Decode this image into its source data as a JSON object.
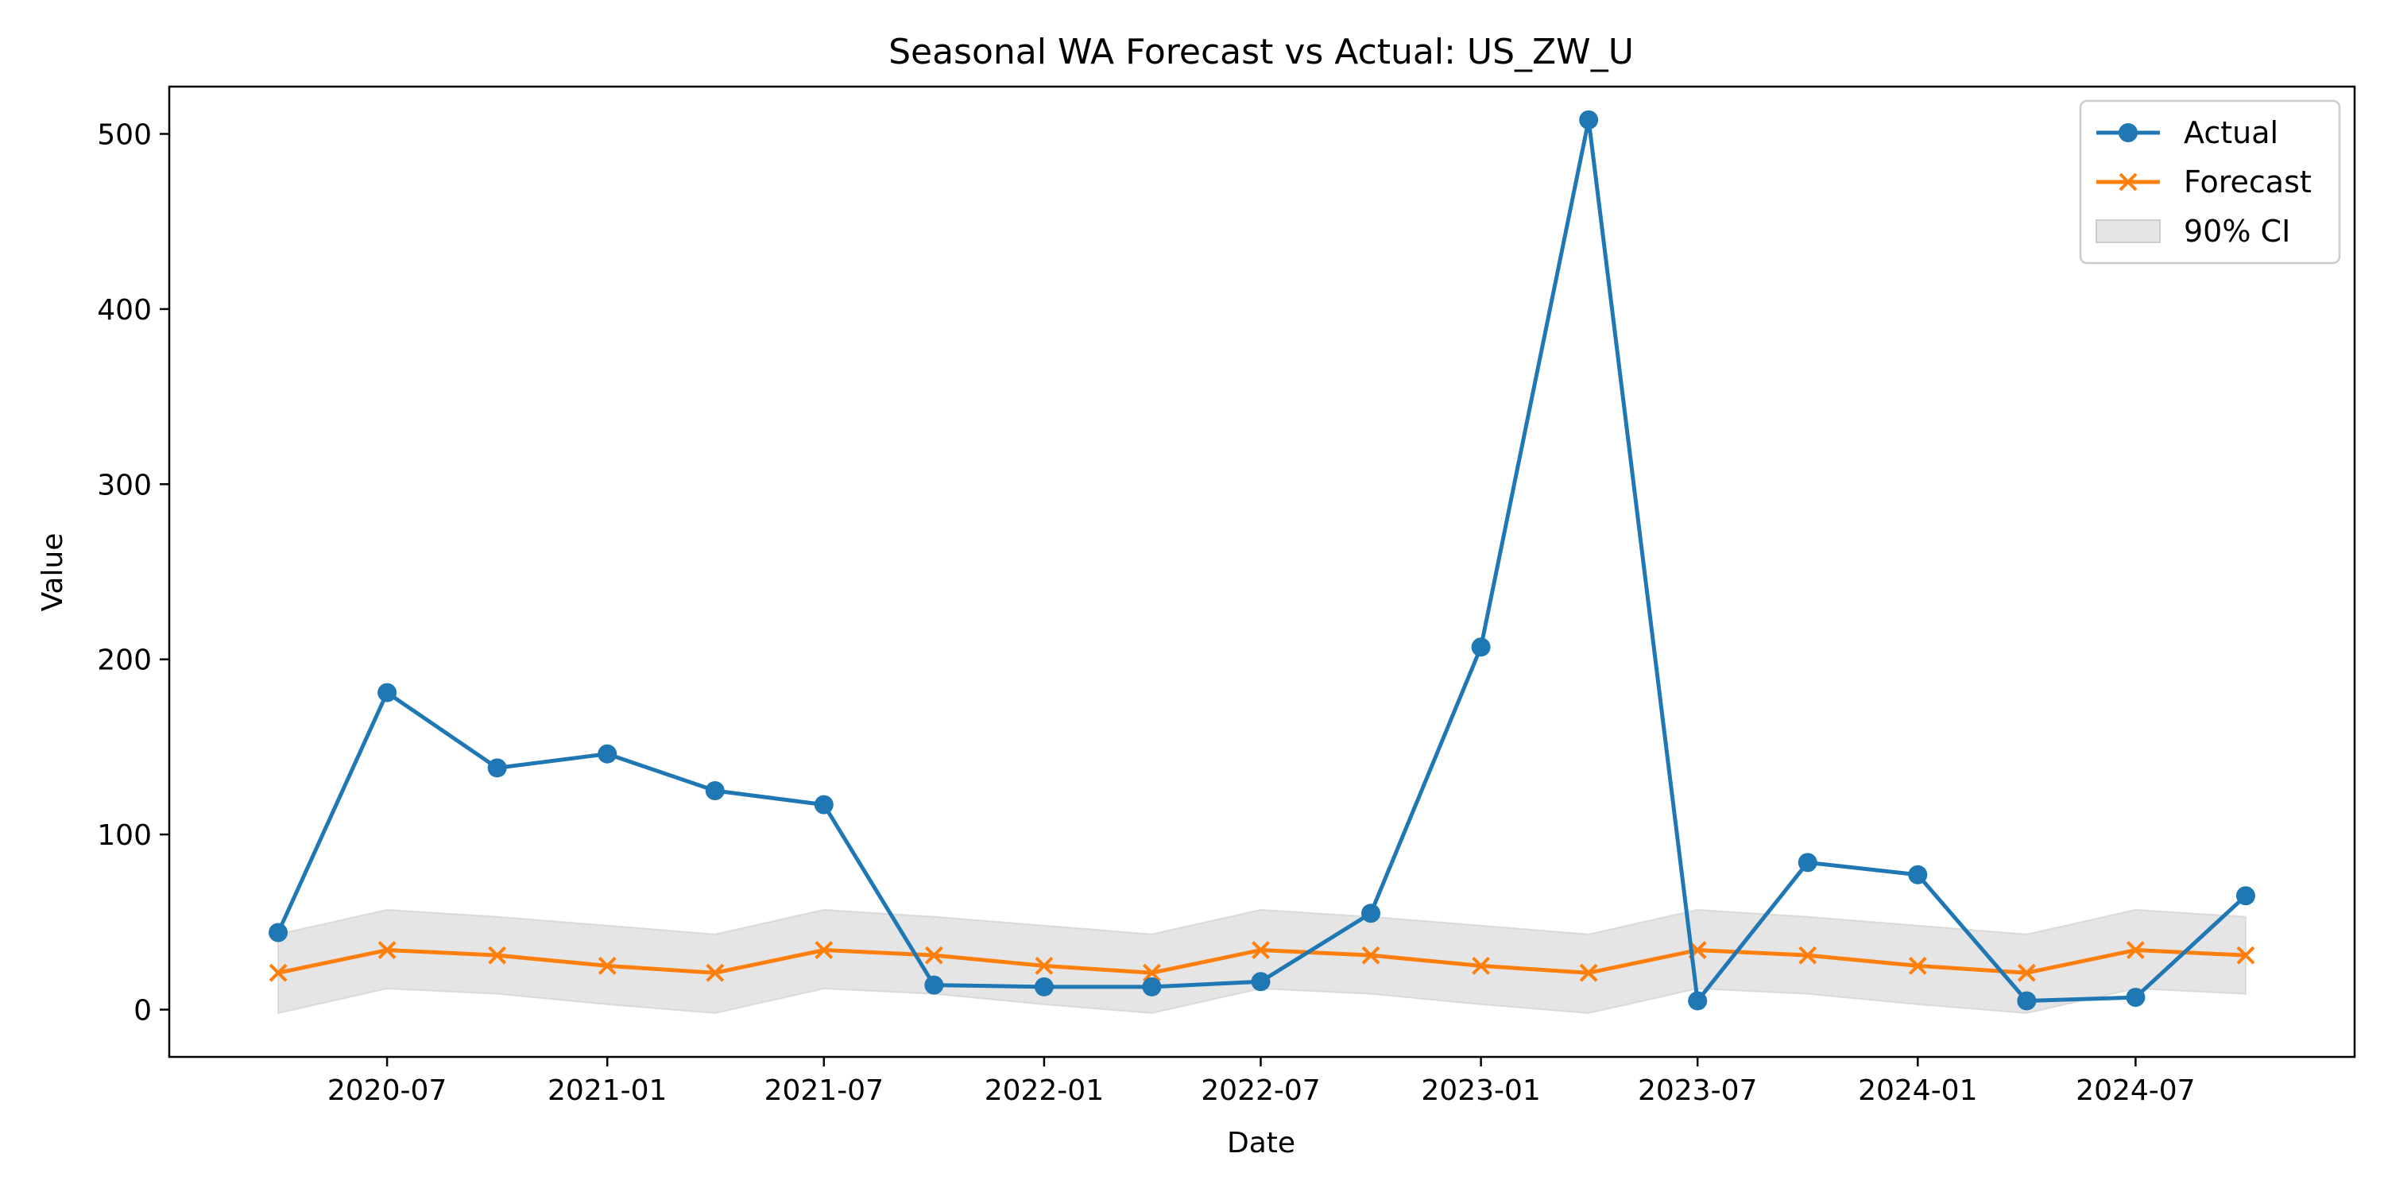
{
  "chart_data": {
    "type": "line",
    "title": "Seasonal WA Forecast vs Actual: US_ZW_U",
    "xlabel": "Date",
    "ylabel": "Value",
    "x_ticks": [
      "2020-07",
      "2021-01",
      "2021-07",
      "2022-01",
      "2022-07",
      "2023-01",
      "2023-07",
      "2024-01",
      "2024-07"
    ],
    "y_ticks": [
      0,
      100,
      200,
      300,
      400,
      500
    ],
    "ylim": [
      -27,
      527
    ],
    "xlim": [
      "2020-01-01",
      "2024-12-31"
    ],
    "grid": false,
    "legend_position": "top-right",
    "x": [
      "2020-04-01",
      "2020-07-01",
      "2020-10-01",
      "2021-01-01",
      "2021-04-01",
      "2021-07-01",
      "2021-10-01",
      "2022-01-01",
      "2022-04-01",
      "2022-07-01",
      "2022-10-01",
      "2023-01-01",
      "2023-04-01",
      "2023-07-01",
      "2023-10-01",
      "2024-01-01",
      "2024-04-01",
      "2024-07-01",
      "2024-10-01"
    ],
    "series": [
      {
        "name": "Actual",
        "color": "#1f77b4",
        "marker": "circle",
        "values": [
          44,
          181,
          138,
          146,
          125,
          117,
          14,
          13,
          13,
          16,
          55,
          207,
          508,
          5,
          84,
          77,
          5,
          7,
          65
        ]
      },
      {
        "name": "Forecast",
        "color": "#ff7f0e",
        "marker": "x",
        "values": [
          21,
          34,
          31,
          25,
          21,
          34,
          31,
          25,
          21,
          34,
          31,
          25,
          21,
          34,
          31,
          25,
          21,
          34,
          31
        ]
      }
    ],
    "band": {
      "name": "90% CI",
      "color": "#cccccc",
      "lower": [
        -2,
        12,
        9,
        3,
        -2,
        12,
        9,
        3,
        -2,
        12,
        9,
        3,
        -2,
        12,
        9,
        3,
        -2,
        12,
        9
      ],
      "upper": [
        43,
        57,
        53,
        48,
        43,
        57,
        53,
        48,
        43,
        57,
        53,
        48,
        43,
        57,
        53,
        48,
        43,
        57,
        53
      ]
    }
  }
}
